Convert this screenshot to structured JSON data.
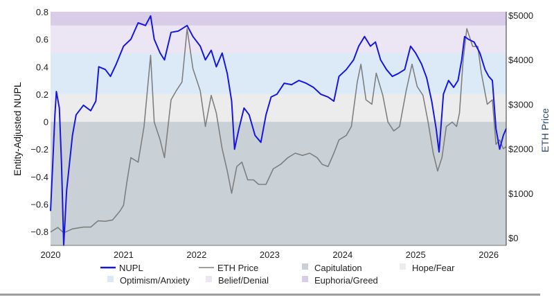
{
  "chart_data": {
    "type": "line",
    "title": "",
    "xlabel": "",
    "ylabel": "Entity-Adjusted NUPL",
    "ylabel_right": "ETH Price",
    "xlim": [
      2020.0,
      2026.24
    ],
    "ylim": [
      -0.9,
      0.8
    ],
    "ylim_right": [
      0,
      5000
    ],
    "x_ticks": [
      2020,
      2021,
      2022,
      2023,
      2024,
      2025,
      2026
    ],
    "x_tick_labels": [
      "2020",
      "2021",
      "2022",
      "2023",
      "2024",
      "2025",
      "2026"
    ],
    "y_ticks": [
      0.8,
      0.6,
      0.4,
      0.2,
      0,
      -0.2,
      -0.4,
      -0.6,
      -0.8
    ],
    "y_tick_labels": [
      "0.8",
      "0.6",
      "0.4",
      "0.2",
      "0",
      "−0.2",
      "−0.4",
      "−0.6",
      "−0.8"
    ],
    "y_right_ticks": [
      5000,
      4000,
      3000,
      2000,
      1000,
      0
    ],
    "y_right_tick_labels": [
      "$5000",
      "$4000",
      "$3000",
      "$2000",
      "$1000",
      "$0"
    ],
    "bands": [
      {
        "name": "Capitulation",
        "from": -0.9,
        "to": 0,
        "color": "#c9d0d6"
      },
      {
        "name": "Hope/Fear",
        "from": 0,
        "to": 0.2,
        "color": "#ececec"
      },
      {
        "name": "Optimism/Anxiety",
        "from": 0.2,
        "to": 0.5,
        "color": "#dceaf8"
      },
      {
        "name": "Belief/Denial",
        "from": 0.5,
        "to": 0.7,
        "color": "#ebe5f4"
      },
      {
        "name": "Euphoria/Greed",
        "from": 0.7,
        "to": 0.8,
        "color": "#d8cce9"
      }
    ],
    "series": [
      {
        "name": "NUPL",
        "axis": "left",
        "color": "#1616e0",
        "x": [
          2020.0,
          2020.03,
          2020.06,
          2020.08,
          2020.12,
          2020.15,
          2020.18,
          2020.22,
          2020.26,
          2020.3,
          2020.35,
          2020.45,
          2020.55,
          2020.62,
          2020.66,
          2020.75,
          2020.82,
          2020.9,
          2021.0,
          2021.1,
          2021.2,
          2021.3,
          2021.37,
          2021.42,
          2021.5,
          2021.56,
          2021.65,
          2021.75,
          2021.87,
          2021.95,
          2022.05,
          2022.12,
          2022.2,
          2022.27,
          2022.35,
          2022.42,
          2022.48,
          2022.52,
          2022.58,
          2022.65,
          2022.72,
          2022.8,
          2022.88,
          2022.95,
          2023.02,
          2023.1,
          2023.2,
          2023.3,
          2023.4,
          2023.5,
          2023.6,
          2023.7,
          2023.8,
          2023.88,
          2023.95,
          2024.05,
          2024.15,
          2024.22,
          2024.3,
          2024.38,
          2024.45,
          2024.52,
          2024.6,
          2024.68,
          2024.76,
          2024.85,
          2024.93,
          2025.0,
          2025.08,
          2025.15,
          2025.22,
          2025.28,
          2025.32,
          2025.38,
          2025.45,
          2025.52,
          2025.58,
          2025.63,
          2025.67,
          2025.72,
          2025.8,
          2025.88,
          2025.95,
          2026.0,
          2026.05,
          2026.1,
          2026.15,
          2026.2,
          2026.24
        ],
        "values": [
          -0.65,
          -0.3,
          0.05,
          0.22,
          0.1,
          -0.3,
          -0.9,
          -0.5,
          -0.3,
          -0.1,
          0.05,
          0.12,
          0.08,
          0.15,
          0.4,
          0.38,
          0.33,
          0.42,
          0.55,
          0.6,
          0.72,
          0.7,
          0.77,
          0.6,
          0.5,
          0.45,
          0.65,
          0.66,
          0.7,
          0.62,
          0.55,
          0.45,
          0.52,
          0.4,
          0.5,
          0.35,
          0.15,
          -0.2,
          -0.05,
          0.1,
          0.05,
          -0.1,
          -0.15,
          0.05,
          0.18,
          0.2,
          0.28,
          0.27,
          0.3,
          0.28,
          0.25,
          0.2,
          0.18,
          0.15,
          0.33,
          0.38,
          0.45,
          0.55,
          0.62,
          0.55,
          0.58,
          0.45,
          0.38,
          0.33,
          0.35,
          0.38,
          0.55,
          0.5,
          0.42,
          0.32,
          0.15,
          -0.05,
          -0.22,
          0.2,
          0.3,
          0.25,
          0.3,
          0.45,
          0.62,
          0.6,
          0.58,
          0.5,
          0.38,
          0.33,
          0.3,
          -0.05,
          -0.2,
          -0.1,
          -0.05
        ]
      },
      {
        "name": "ETH Price",
        "axis": "right",
        "color": "#7f7f7f",
        "x": [
          2020.0,
          2020.1,
          2020.18,
          2020.3,
          2020.45,
          2020.55,
          2020.65,
          2020.75,
          2020.85,
          2020.95,
          2021.0,
          2021.05,
          2021.1,
          2021.2,
          2021.28,
          2021.37,
          2021.42,
          2021.5,
          2021.56,
          2021.65,
          2021.72,
          2021.8,
          2021.87,
          2021.95,
          2022.05,
          2022.12,
          2022.2,
          2022.27,
          2022.35,
          2022.42,
          2022.48,
          2022.55,
          2022.62,
          2022.7,
          2022.78,
          2022.85,
          2022.95,
          2023.05,
          2023.15,
          2023.25,
          2023.35,
          2023.45,
          2023.55,
          2023.65,
          2023.72,
          2023.8,
          2023.88,
          2023.95,
          2024.05,
          2024.12,
          2024.2,
          2024.25,
          2024.32,
          2024.4,
          2024.46,
          2024.55,
          2024.62,
          2024.7,
          2024.78,
          2024.87,
          2024.95,
          2025.02,
          2025.1,
          2025.17,
          2025.24,
          2025.3,
          2025.36,
          2025.42,
          2025.5,
          2025.56,
          2025.6,
          2025.65,
          2025.7,
          2025.78,
          2025.85,
          2025.9,
          2025.98,
          2026.05,
          2026.1,
          2026.15,
          2026.2,
          2026.24
        ],
        "values": [
          130,
          230,
          110,
          200,
          240,
          240,
          380,
          370,
          400,
          600,
          730,
          1300,
          1800,
          1700,
          2500,
          4100,
          2600,
          2200,
          1800,
          3100,
          3300,
          3500,
          4700,
          3800,
          3300,
          2500,
          3200,
          2800,
          2000,
          1500,
          1000,
          1600,
          1700,
          1300,
          1300,
          1200,
          1200,
          1550,
          1650,
          1800,
          1900,
          1850,
          1900,
          1800,
          1650,
          1600,
          1900,
          2200,
          2300,
          2500,
          3500,
          3900,
          3100,
          3000,
          3700,
          3200,
          2600,
          2400,
          2500,
          3300,
          3900,
          3400,
          3200,
          2600,
          1900,
          1500,
          1800,
          2500,
          2600,
          2500,
          2800,
          4000,
          4700,
          4300,
          4300,
          3700,
          3000,
          3100,
          2100,
          2200,
          2000,
          2050
        ]
      }
    ],
    "legend": {
      "placement": "bottom",
      "items": [
        {
          "label": "NUPL",
          "kind": "line",
          "color": "#1616e0"
        },
        {
          "label": "ETH Price",
          "kind": "line",
          "color": "#7f7f7f"
        },
        {
          "label": "Capitulation",
          "kind": "square",
          "color": "#c9d0d6"
        },
        {
          "label": "Hope/Fear",
          "kind": "square",
          "color": "#ececec"
        },
        {
          "label": "Optimism/Anxiety",
          "kind": "square",
          "color": "#dceaf8"
        },
        {
          "label": "Belief/Denial",
          "kind": "square",
          "color": "#ebe5f4"
        },
        {
          "label": "Euphoria/Greed",
          "kind": "square",
          "color": "#d8cce9"
        }
      ]
    }
  }
}
